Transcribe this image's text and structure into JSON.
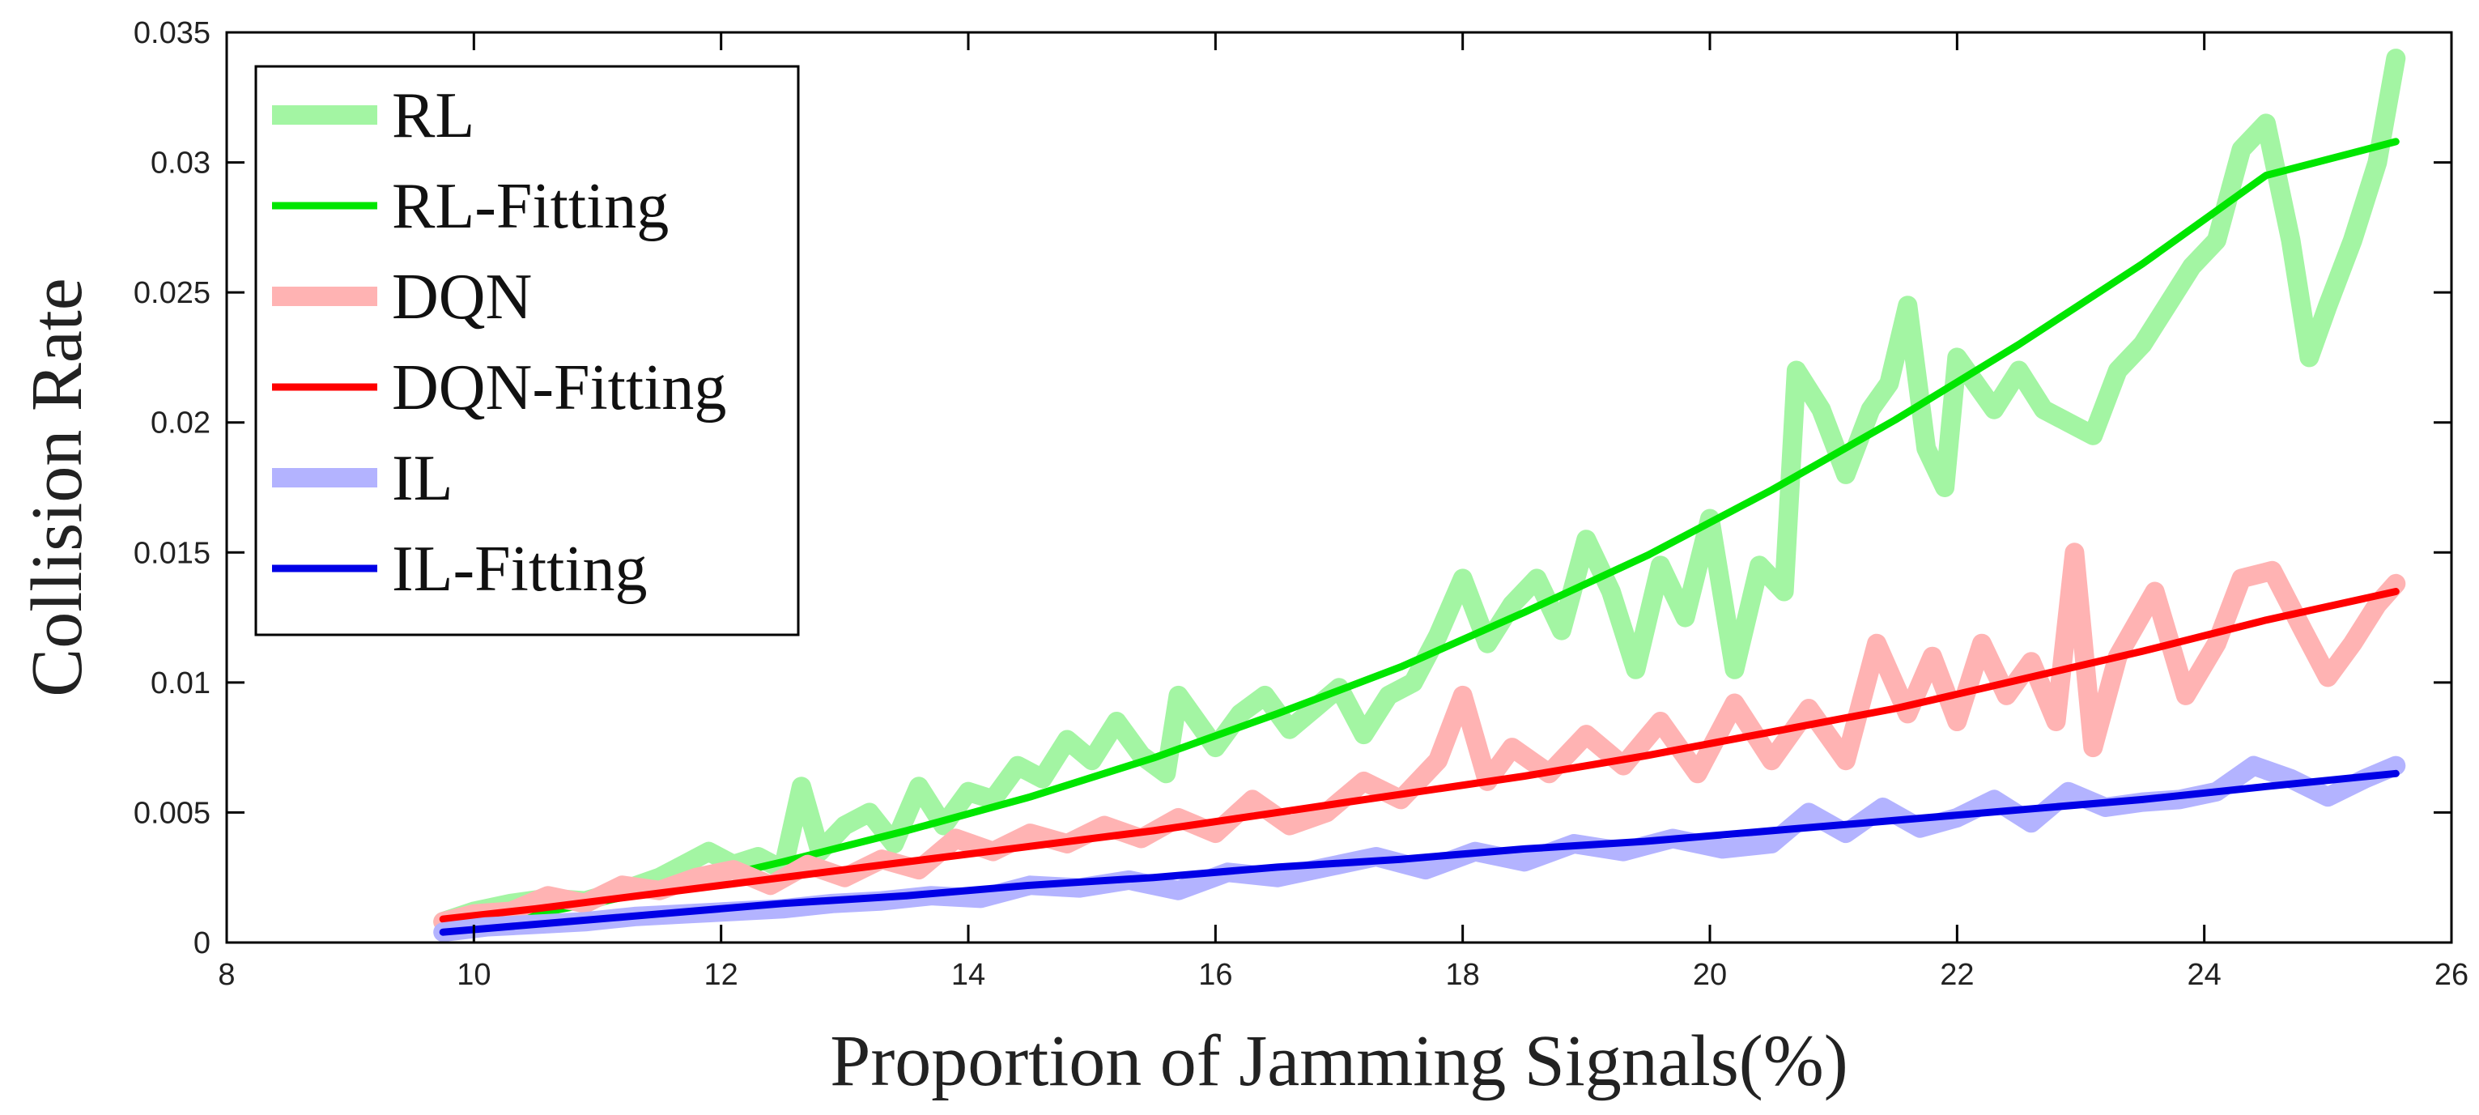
{
  "chart_data": {
    "type": "line",
    "xlabel": "Proportion of Jamming Signals(%)",
    "ylabel": "Collision Rate",
    "xlim": [
      8,
      26
    ],
    "ylim": [
      0,
      0.035
    ],
    "xticks": [
      "8",
      "10",
      "12",
      "14",
      "16",
      "18",
      "20",
      "22",
      "24",
      "26"
    ],
    "yticks": [
      "0",
      "0.005",
      "0.01",
      "0.015",
      "0.02",
      "0.025",
      "0.03",
      "0.035"
    ],
    "grid": false,
    "legend_position": "top-left",
    "series": [
      {
        "name": "RL",
        "color": "#a3f5a3",
        "style": "thick",
        "x": [
          9.75,
          10.0,
          10.3,
          10.6,
          10.9,
          11.2,
          11.5,
          11.7,
          11.9,
          12.1,
          12.3,
          12.5,
          12.65,
          12.8,
          13.0,
          13.2,
          13.4,
          13.6,
          13.8,
          14.0,
          14.2,
          14.4,
          14.6,
          14.8,
          15.0,
          15.2,
          15.4,
          15.6,
          15.7,
          15.85,
          16.0,
          16.2,
          16.4,
          16.6,
          16.8,
          17.0,
          17.2,
          17.4,
          17.6,
          17.8,
          18.0,
          18.2,
          18.4,
          18.6,
          18.8,
          19.0,
          19.2,
          19.4,
          19.6,
          19.8,
          20.0,
          20.2,
          20.4,
          20.6,
          20.7,
          20.9,
          21.1,
          21.3,
          21.45,
          21.6,
          21.75,
          21.9,
          22.0,
          22.15,
          22.3,
          22.5,
          22.7,
          22.9,
          23.1,
          23.3,
          23.5,
          23.7,
          23.9,
          24.1,
          24.3,
          24.5,
          24.7,
          24.85,
          25.0,
          25.2,
          25.4,
          25.55
        ],
        "y": [
          0.0008,
          0.0012,
          0.0015,
          0.0017,
          0.0016,
          0.002,
          0.0025,
          0.003,
          0.0035,
          0.003,
          0.0033,
          0.0028,
          0.006,
          0.0035,
          0.0045,
          0.005,
          0.0038,
          0.006,
          0.0045,
          0.0058,
          0.0055,
          0.0068,
          0.0063,
          0.0078,
          0.007,
          0.0085,
          0.0072,
          0.0065,
          0.0095,
          0.0085,
          0.0075,
          0.0088,
          0.0095,
          0.0082,
          0.009,
          0.0098,
          0.008,
          0.0095,
          0.01,
          0.0118,
          0.014,
          0.0115,
          0.013,
          0.014,
          0.012,
          0.0155,
          0.0135,
          0.0105,
          0.0145,
          0.0125,
          0.0163,
          0.0105,
          0.0145,
          0.0135,
          0.022,
          0.0205,
          0.018,
          0.0205,
          0.0215,
          0.0245,
          0.019,
          0.0175,
          0.0225,
          0.0215,
          0.0205,
          0.022,
          0.0205,
          0.02,
          0.0195,
          0.022,
          0.023,
          0.0245,
          0.026,
          0.027,
          0.0305,
          0.0315,
          0.027,
          0.0225,
          0.0245,
          0.027,
          0.03,
          0.034
        ]
      },
      {
        "name": "RL-Fitting",
        "color": "#00e600",
        "style": "thin",
        "x": [
          9.75,
          10.5,
          11.5,
          12.5,
          13.5,
          14.5,
          15.5,
          16.5,
          17.5,
          18.5,
          19.5,
          20.5,
          21.5,
          22.5,
          23.5,
          24.5,
          25.55
        ],
        "y": [
          0.0005,
          0.0011,
          0.002,
          0.0031,
          0.0043,
          0.0056,
          0.0071,
          0.0088,
          0.0106,
          0.0127,
          0.0149,
          0.0174,
          0.0201,
          0.023,
          0.0261,
          0.0295,
          0.0308
        ]
      },
      {
        "name": "DQN",
        "color": "#ffb3b3",
        "style": "thick",
        "x": [
          9.75,
          10.0,
          10.3,
          10.6,
          10.9,
          11.2,
          11.5,
          11.8,
          12.1,
          12.4,
          12.7,
          13.0,
          13.3,
          13.6,
          13.9,
          14.2,
          14.5,
          14.8,
          15.1,
          15.4,
          15.7,
          16.0,
          16.3,
          16.6,
          16.9,
          17.2,
          17.5,
          17.8,
          18.0,
          18.2,
          18.4,
          18.7,
          19.0,
          19.3,
          19.6,
          19.9,
          20.2,
          20.5,
          20.8,
          21.1,
          21.35,
          21.6,
          21.8,
          22.0,
          22.2,
          22.4,
          22.6,
          22.8,
          22.95,
          23.1,
          23.3,
          23.6,
          23.85,
          24.1,
          24.3,
          24.55,
          24.8,
          25.0,
          25.2,
          25.4,
          25.55
        ],
        "y": [
          0.0008,
          0.0011,
          0.0012,
          0.0018,
          0.0015,
          0.0022,
          0.002,
          0.0025,
          0.0028,
          0.0022,
          0.003,
          0.0025,
          0.0032,
          0.0028,
          0.004,
          0.0035,
          0.0042,
          0.0038,
          0.0045,
          0.004,
          0.0048,
          0.0042,
          0.0055,
          0.0045,
          0.005,
          0.0062,
          0.0055,
          0.007,
          0.0095,
          0.0062,
          0.0075,
          0.0065,
          0.008,
          0.0068,
          0.0085,
          0.0065,
          0.0092,
          0.007,
          0.009,
          0.007,
          0.0115,
          0.0088,
          0.011,
          0.0085,
          0.0115,
          0.0095,
          0.0108,
          0.0085,
          0.015,
          0.0075,
          0.011,
          0.0135,
          0.0095,
          0.0115,
          0.014,
          0.0143,
          0.012,
          0.0102,
          0.0115,
          0.013,
          0.0138
        ]
      },
      {
        "name": "DQN-Fitting",
        "color": "#ff0000",
        "style": "thin",
        "x": [
          9.75,
          10.5,
          11.5,
          12.5,
          13.5,
          14.5,
          15.5,
          16.5,
          17.5,
          18.5,
          19.5,
          20.5,
          21.5,
          22.5,
          23.5,
          24.5,
          25.55
        ],
        "y": [
          0.0009,
          0.0013,
          0.0019,
          0.0025,
          0.0031,
          0.0037,
          0.0043,
          0.005,
          0.0057,
          0.0064,
          0.0072,
          0.0081,
          0.009,
          0.0101,
          0.0112,
          0.0124,
          0.0135
        ]
      },
      {
        "name": "IL",
        "color": "#b3b3ff",
        "style": "thick",
        "x": [
          9.75,
          10.1,
          10.5,
          10.9,
          11.3,
          11.7,
          12.1,
          12.5,
          12.9,
          13.3,
          13.7,
          14.1,
          14.5,
          14.9,
          15.3,
          15.7,
          16.1,
          16.5,
          16.9,
          17.3,
          17.7,
          18.1,
          18.5,
          18.9,
          19.3,
          19.7,
          20.1,
          20.5,
          20.8,
          21.1,
          21.4,
          21.7,
          22.0,
          22.3,
          22.6,
          22.9,
          23.2,
          23.5,
          23.8,
          24.1,
          24.4,
          24.7,
          25.0,
          25.3,
          25.55
        ],
        "y": [
          0.0004,
          0.0006,
          0.0007,
          0.0008,
          0.001,
          0.0011,
          0.0012,
          0.0013,
          0.0015,
          0.0016,
          0.0018,
          0.0017,
          0.0022,
          0.0021,
          0.0024,
          0.002,
          0.0027,
          0.0025,
          0.0029,
          0.0033,
          0.0028,
          0.0035,
          0.0031,
          0.0038,
          0.0035,
          0.004,
          0.0036,
          0.0038,
          0.005,
          0.0042,
          0.0052,
          0.0044,
          0.0048,
          0.0055,
          0.0046,
          0.0058,
          0.0052,
          0.0054,
          0.0055,
          0.0058,
          0.0068,
          0.0063,
          0.0056,
          0.0063,
          0.0068
        ]
      },
      {
        "name": "IL-Fitting",
        "color": "#0000e6",
        "style": "thin",
        "x": [
          9.75,
          10.5,
          11.5,
          12.5,
          13.5,
          14.5,
          15.5,
          16.5,
          17.5,
          18.5,
          19.5,
          20.5,
          21.5,
          22.5,
          23.5,
          24.5,
          25.55
        ],
        "y": [
          0.0004,
          0.0007,
          0.0011,
          0.0015,
          0.0018,
          0.0022,
          0.0025,
          0.0029,
          0.0032,
          0.0036,
          0.0039,
          0.0043,
          0.0047,
          0.0051,
          0.0055,
          0.006,
          0.0065
        ]
      }
    ]
  }
}
